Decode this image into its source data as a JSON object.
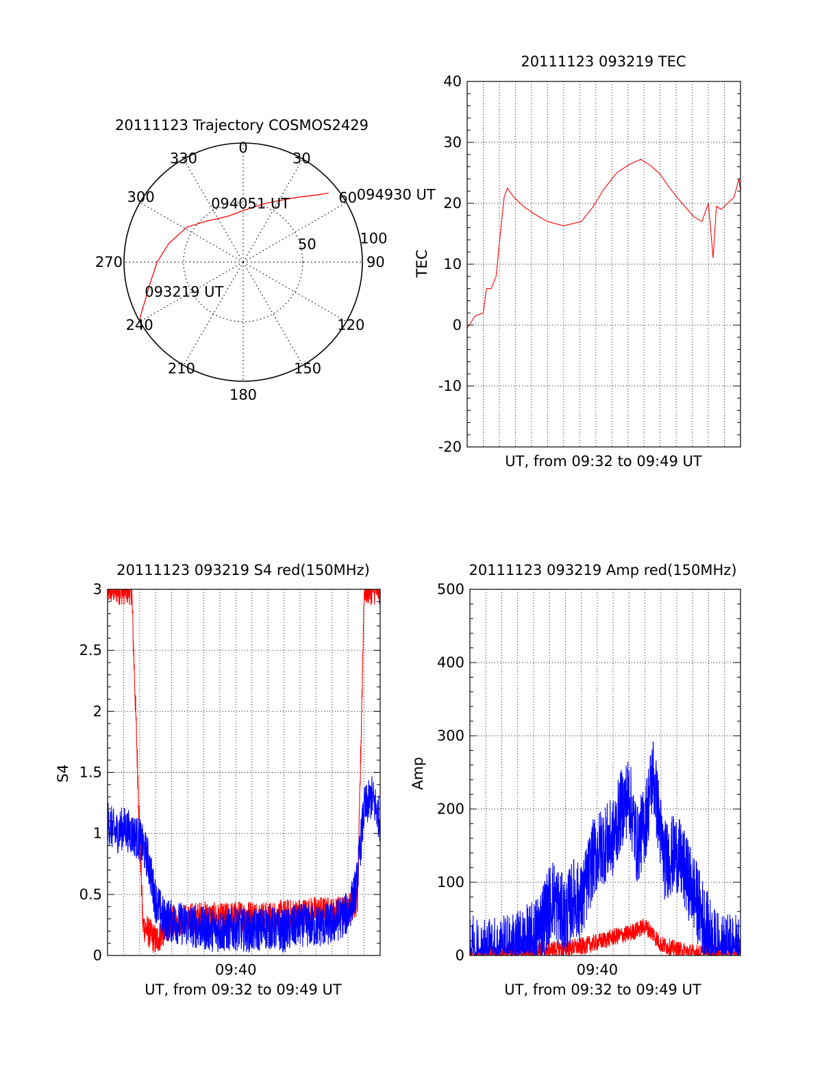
{
  "colors": {
    "red": "#ff0000",
    "blue": "#0000ff",
    "axis": "#000000",
    "grid": "#000000"
  },
  "chart_data": [
    {
      "type": "polar",
      "title": "20111123 Trajectory COSMOS2429",
      "angle_labels": [
        "0",
        "30",
        "60",
        "90",
        "120",
        "150",
        "180",
        "210",
        "240",
        "270",
        "300",
        "330"
      ],
      "radius_labels": [
        "50",
        "100"
      ],
      "radius_label_angles": [
        75,
        80
      ],
      "rmax": 90,
      "rings": [
        45
      ],
      "spokes_deg": [
        0,
        30,
        60,
        90,
        120,
        150,
        180,
        210,
        240,
        270,
        300,
        330
      ],
      "grid": true,
      "series": [
        {
          "color": "red",
          "points_az_zenith": [
            [
              240.4,
              90.4
            ],
            [
              256,
              73
            ],
            [
              270,
              65
            ],
            [
              284,
              58
            ],
            [
              302,
              50
            ],
            [
              318,
              41.7
            ],
            [
              330,
              38
            ],
            [
              344,
              36.6
            ],
            [
              353,
              37.5
            ],
            [
              0,
              39
            ],
            [
              10,
              42
            ],
            [
              20,
              47
            ],
            [
              30,
              53.7
            ],
            [
              40,
              64
            ],
            [
              48,
              76
            ],
            [
              51,
              83
            ]
          ]
        }
      ],
      "annotations": [
        {
          "text": "094930 UT",
          "az": 59,
          "zenith": 100
        },
        {
          "text": "094051 UT",
          "az": 7,
          "zenith": 45
        },
        {
          "text": "093219 UT",
          "az": 254,
          "zenith": 80
        }
      ]
    },
    {
      "type": "line",
      "title": "20111123 093219 TEC",
      "xlabel": "UT, from 09:32 to 09:49 UT",
      "ylabel": "TEC",
      "ylim": [
        -20,
        40
      ],
      "yticks": [
        "-20",
        "-10",
        "0",
        "10",
        "20",
        "30",
        "40"
      ],
      "xlim": [
        0,
        17
      ],
      "xgrid_minutes": [
        1,
        2,
        3,
        4,
        5,
        6,
        7,
        8,
        9,
        10,
        11,
        12,
        13,
        14,
        15,
        16
      ],
      "grid": true,
      "series": [
        {
          "color": "red",
          "x": [
            0,
            0.5,
            1.0,
            1.2,
            1.5,
            1.8,
            2.1,
            2.3,
            2.5,
            2.9,
            3.5,
            4.2,
            5.0,
            6.0,
            7.1,
            7.8,
            8.5,
            9.3,
            10.1,
            10.8,
            11.4,
            12.0,
            12.6,
            13.2,
            13.7,
            14.1,
            14.6,
            15.0,
            15.3,
            15.5,
            15.8,
            16.2,
            16.6,
            16.9,
            17.0
          ],
          "y": [
            -0.5,
            1.5,
            2.0,
            6.0,
            6.0,
            8.0,
            16.0,
            21.0,
            22.5,
            21.0,
            19.5,
            18.2,
            17.0,
            16.3,
            17.0,
            19.3,
            22.3,
            25.0,
            26.4,
            27.2,
            26.2,
            24.8,
            22.5,
            20.5,
            19.0,
            17.8,
            17.0,
            20.0,
            11.0,
            19.5,
            19.0,
            20.0,
            21.0,
            24.0,
            22.0
          ]
        }
      ]
    },
    {
      "type": "line",
      "title": "20111123 093219 S4 red(150MHz)",
      "xlabel": "UT, from 09:32 to 09:49 UT",
      "ylabel": "S4",
      "ylim": [
        0,
        3
      ],
      "yticks": [
        "0",
        "0.5",
        "1",
        "1.5",
        "2",
        "2.5",
        "3"
      ],
      "xlim": [
        0,
        17
      ],
      "xtick_values": [
        8
      ],
      "xtick_labels": [
        "09:40"
      ],
      "xgrid_minutes": [
        1,
        2,
        3,
        4,
        5,
        6,
        7,
        8,
        9,
        10,
        11,
        12,
        13,
        14,
        15,
        16
      ],
      "grid": true,
      "series": [
        {
          "color": "red",
          "x": [
            0,
            1.5,
            2.2,
            3.0,
            4.0,
            5.0,
            6.0,
            7.0,
            8.0,
            9.0,
            10.0,
            11.0,
            12.0,
            13.0,
            14.0,
            15.0,
            15.6,
            16.0,
            17.0
          ],
          "y": [
            3.0,
            3.0,
            0.25,
            0.12,
            0.28,
            0.3,
            0.32,
            0.3,
            0.32,
            0.33,
            0.31,
            0.33,
            0.34,
            0.36,
            0.35,
            0.38,
            0.45,
            3.0,
            3.0
          ],
          "noise": 0.13
        },
        {
          "color": "blue",
          "x": [
            0,
            0.5,
            1.0,
            1.5,
            2.0,
            2.5,
            3.0,
            3.5,
            4.0,
            5.0,
            6.0,
            7.0,
            8.0,
            9.0,
            10.0,
            11.0,
            12.0,
            13.0,
            14.0,
            15.0,
            15.5,
            16.0,
            16.5,
            17.0
          ],
          "y": [
            1.1,
            1.0,
            1.05,
            1.0,
            0.95,
            0.8,
            0.45,
            0.3,
            0.28,
            0.25,
            0.22,
            0.2,
            0.22,
            0.2,
            0.23,
            0.2,
            0.25,
            0.24,
            0.26,
            0.35,
            0.55,
            1.2,
            1.3,
            1.1
          ],
          "noise": 0.18
        }
      ]
    },
    {
      "type": "line",
      "title": "20111123 093219 Amp red(150MHz)",
      "xlabel": "UT, from 09:32 to 09:49 UT",
      "ylabel": "Amp",
      "ylim": [
        0,
        500
      ],
      "yticks": [
        "0",
        "100",
        "200",
        "300",
        "400",
        "500"
      ],
      "xlim": [
        0,
        17
      ],
      "xtick_values": [
        8
      ],
      "xtick_labels": [
        "09:40"
      ],
      "xgrid_minutes": [
        1,
        2,
        3,
        4,
        5,
        6,
        7,
        8,
        9,
        10,
        11,
        12,
        13,
        14,
        15,
        16
      ],
      "grid": true,
      "series": [
        {
          "color": "red",
          "x": [
            0,
            3.0,
            4.0,
            5.0,
            6.0,
            7.0,
            8.0,
            9.0,
            10.0,
            11.0,
            11.5,
            12.0,
            13.0,
            14.0,
            15.0,
            17.0
          ],
          "y": [
            0,
            1,
            5,
            8,
            10,
            12,
            18,
            25,
            30,
            40,
            30,
            15,
            8,
            4,
            1,
            0
          ],
          "noise": 12
        },
        {
          "color": "blue",
          "x": [
            0,
            2.0,
            3.0,
            4.0,
            4.8,
            5.2,
            6.0,
            6.5,
            7.0,
            7.7,
            8.3,
            9.0,
            9.5,
            10.0,
            10.5,
            11.0,
            11.5,
            12.2,
            13.0,
            14.0,
            14.8,
            15.5,
            17.0
          ],
          "y": [
            0,
            0,
            8,
            20,
            60,
            80,
            50,
            80,
            70,
            130,
            150,
            160,
            200,
            220,
            150,
            180,
            250,
            130,
            140,
            90,
            40,
            5,
            0
          ],
          "noise": 55
        }
      ]
    }
  ]
}
